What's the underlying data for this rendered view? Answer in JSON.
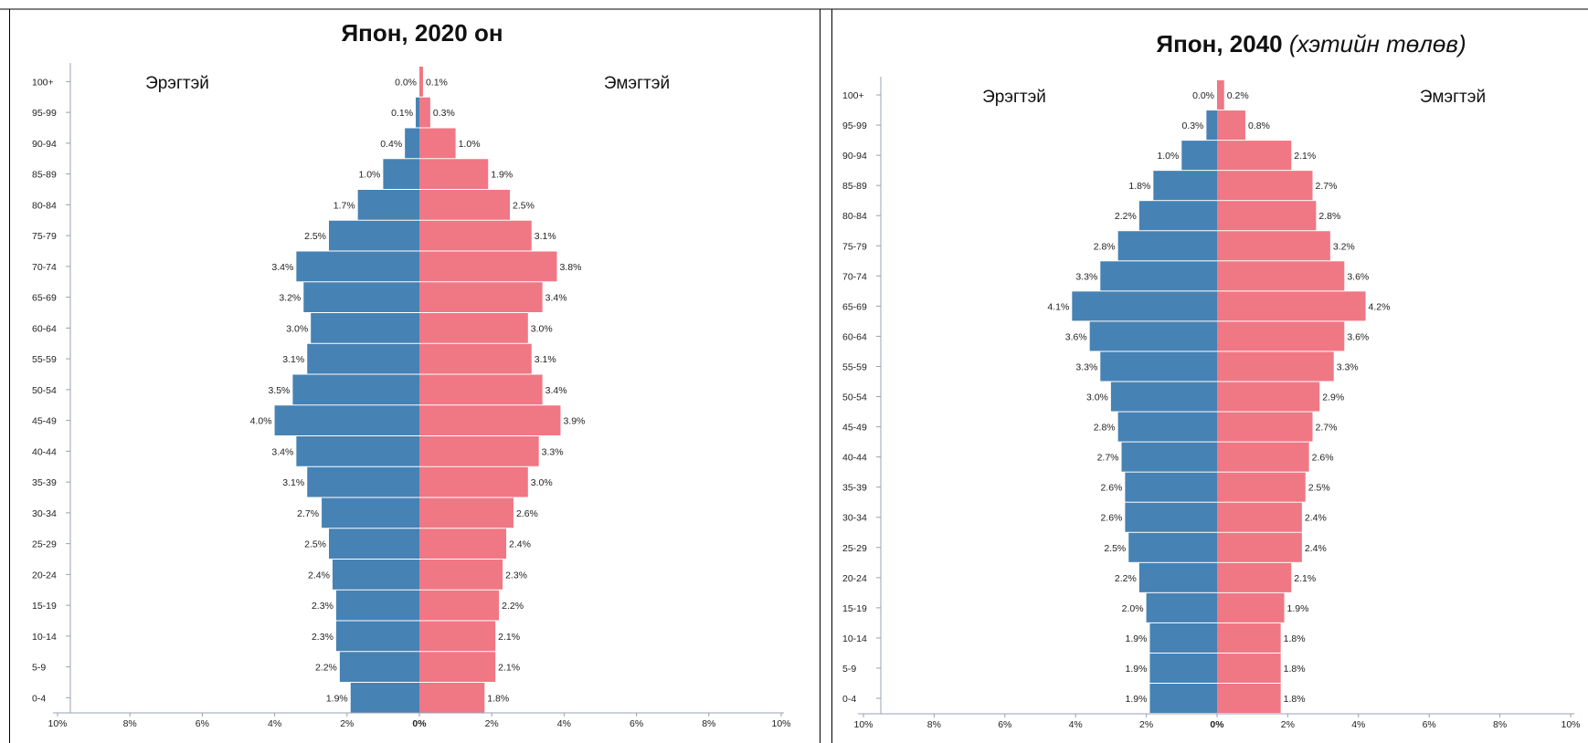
{
  "chart_data": [
    {
      "type": "bar",
      "title": "Япон, 2020 он",
      "subtitle": "",
      "male_label": "Эрэгтэй",
      "female_label": "Эмэгтэй",
      "age_groups": [
        "100+",
        "95-99",
        "90-94",
        "85-89",
        "80-84",
        "75-79",
        "70-74",
        "65-69",
        "60-64",
        "55-59",
        "50-54",
        "45-49",
        "40-44",
        "35-39",
        "30-34",
        "25-29",
        "20-24",
        "15-19",
        "10-14",
        "5-9",
        "0-4"
      ],
      "series": [
        {
          "name": "Эрэгтэй",
          "values": [
            0.0,
            0.1,
            0.4,
            1.0,
            1.7,
            2.5,
            3.4,
            3.2,
            3.0,
            3.1,
            3.5,
            4.0,
            3.4,
            3.1,
            2.7,
            2.5,
            2.4,
            2.3,
            2.3,
            2.2,
            1.9
          ]
        },
        {
          "name": "Эмэгтэй",
          "values": [
            0.1,
            0.3,
            1.0,
            1.9,
            2.5,
            3.1,
            3.8,
            3.4,
            3.0,
            3.1,
            3.4,
            3.9,
            3.3,
            3.0,
            2.6,
            2.4,
            2.3,
            2.2,
            2.1,
            2.1,
            1.8
          ]
        }
      ],
      "xticks": [
        "10%",
        "8%",
        "6%",
        "4%",
        "2%",
        "0%",
        "2%",
        "4%",
        "6%",
        "8%",
        "10%"
      ],
      "xlim": [
        -10,
        10
      ]
    },
    {
      "type": "bar",
      "title": "Япон, 2040",
      "subtitle": "(хэтийн төлөв)",
      "male_label": "Эрэгтэй",
      "female_label": "Эмэгтэй",
      "age_groups": [
        "100+",
        "95-99",
        "90-94",
        "85-89",
        "80-84",
        "75-79",
        "70-74",
        "65-69",
        "60-64",
        "55-59",
        "50-54",
        "45-49",
        "40-44",
        "35-39",
        "30-34",
        "25-29",
        "20-24",
        "15-19",
        "10-14",
        "5-9",
        "0-4"
      ],
      "series": [
        {
          "name": "Эрэгтэй",
          "values": [
            0.0,
            0.3,
            1.0,
            1.8,
            2.2,
            2.8,
            3.3,
            4.1,
            3.6,
            3.3,
            3.0,
            2.8,
            2.7,
            2.6,
            2.6,
            2.5,
            2.2,
            2.0,
            1.9,
            1.9,
            1.9
          ]
        },
        {
          "name": "Эмэгтэй",
          "values": [
            0.2,
            0.8,
            2.1,
            2.7,
            2.8,
            3.2,
            3.6,
            4.2,
            3.6,
            3.3,
            2.9,
            2.7,
            2.6,
            2.5,
            2.4,
            2.4,
            2.1,
            1.9,
            1.8,
            1.8,
            1.8
          ]
        }
      ],
      "xticks": [
        "10%",
        "8%",
        "6%",
        "4%",
        "2%",
        "0%",
        "2%",
        "4%",
        "6%",
        "8%",
        "10%"
      ],
      "xlim": [
        -10,
        10
      ]
    }
  ],
  "colors": {
    "male": "#4682b4",
    "female": "#f07784",
    "axis": "#9aa0b4"
  }
}
